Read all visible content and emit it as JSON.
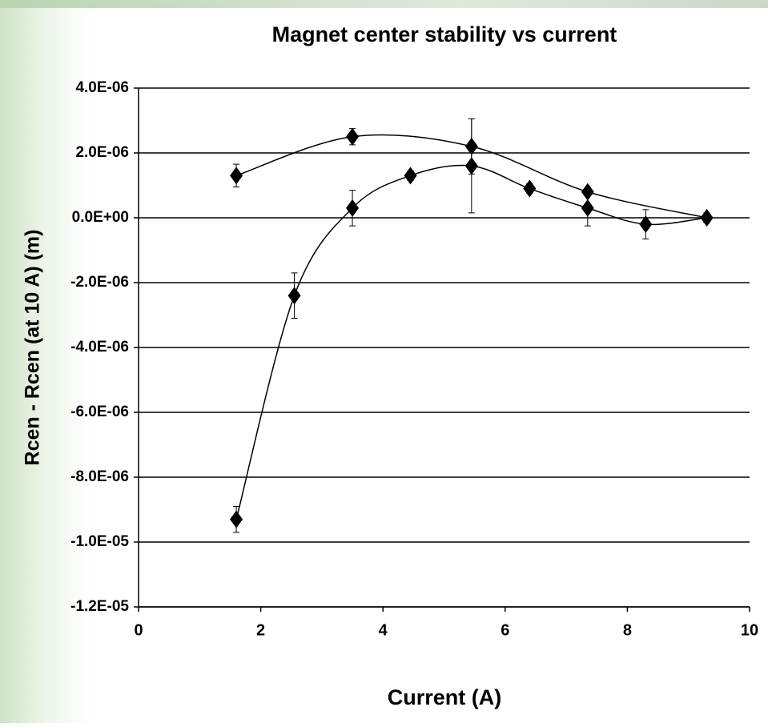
{
  "chart_data": {
    "type": "scatter",
    "title": "Magnet center stability vs current",
    "xlabel": "Current (A)",
    "ylabel": "Rcen - Rcen (at 10 A) (m)",
    "xlim": [
      0,
      10
    ],
    "xticks": [
      0,
      2,
      4,
      6,
      8,
      10
    ],
    "ylim": [
      -1.2e-05,
      4e-06
    ],
    "yticks": [
      {
        "value": -1.2e-05,
        "label": "-1.2E-05"
      },
      {
        "value": -1e-05,
        "label": "-1.0E-05"
      },
      {
        "value": -8e-06,
        "label": "-8.0E-06"
      },
      {
        "value": -6e-06,
        "label": "-6.0E-06"
      },
      {
        "value": -4e-06,
        "label": "-4.0E-06"
      },
      {
        "value": -2e-06,
        "label": "-2.0E-06"
      },
      {
        "value": 0,
        "label": "0.0E+00"
      },
      {
        "value": 2e-06,
        "label": "2.0E-06"
      },
      {
        "value": 4e-06,
        "label": "4.0E-06"
      }
    ],
    "grid": true,
    "series": [
      {
        "color": "#000000",
        "x": [
          1.6,
          3.5,
          5.45,
          7.35,
          9.3
        ],
        "values": [
          1.3e-06,
          2.5e-06,
          2.2e-06,
          8e-07,
          0
        ],
        "errors": [
          3.5e-07,
          2.5e-07,
          8.5e-07,
          1e-07,
          1.5e-07
        ]
      },
      {
        "color": "#000000",
        "x": [
          1.6,
          2.55,
          3.5,
          4.45,
          5.45,
          6.4,
          7.35,
          8.3,
          9.3
        ],
        "values": [
          -9.3e-06,
          -2.4e-06,
          3e-07,
          1.3e-06,
          1.6e-06,
          9e-07,
          3e-07,
          -2e-07,
          0
        ],
        "errors": [
          4e-07,
          7e-07,
          5.5e-07,
          1.5e-07,
          1.45e-06,
          1.5e-07,
          5.5e-07,
          4.5e-07,
          1.5e-07
        ]
      }
    ]
  }
}
